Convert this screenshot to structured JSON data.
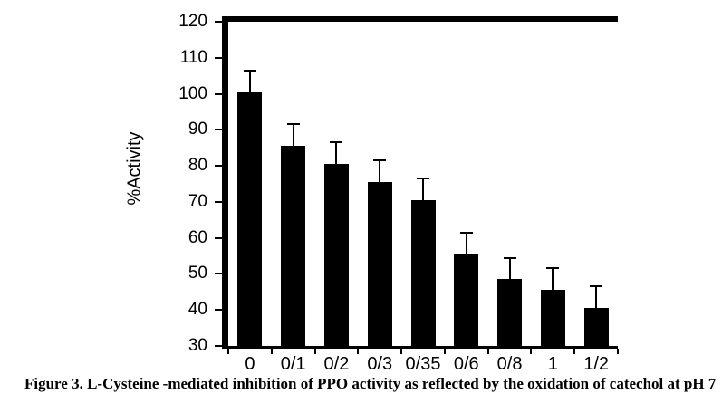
{
  "caption": "Figure 3. L-Cysteine -mediated inhibition of PPO activity as reflected by the oxidation of catechol at pH 7",
  "chart_data": {
    "type": "bar",
    "title": "",
    "xlabel": "",
    "ylabel": "%Activity",
    "categories": [
      "0",
      "0/1",
      "0/2",
      "0/3",
      "0/35",
      "0/6",
      "0/8",
      "1",
      "1/2"
    ],
    "values": [
      100.5,
      85.5,
      80.5,
      75.5,
      70.5,
      55.5,
      48.5,
      45.5,
      40.5
    ],
    "errors": [
      6,
      6,
      6,
      6,
      6,
      6,
      6,
      6,
      6
    ],
    "ylim": [
      30,
      120
    ],
    "ytick_step": 10,
    "bar_color": "#000000",
    "axis_color": "#000000",
    "grid": false,
    "legend": false
  }
}
